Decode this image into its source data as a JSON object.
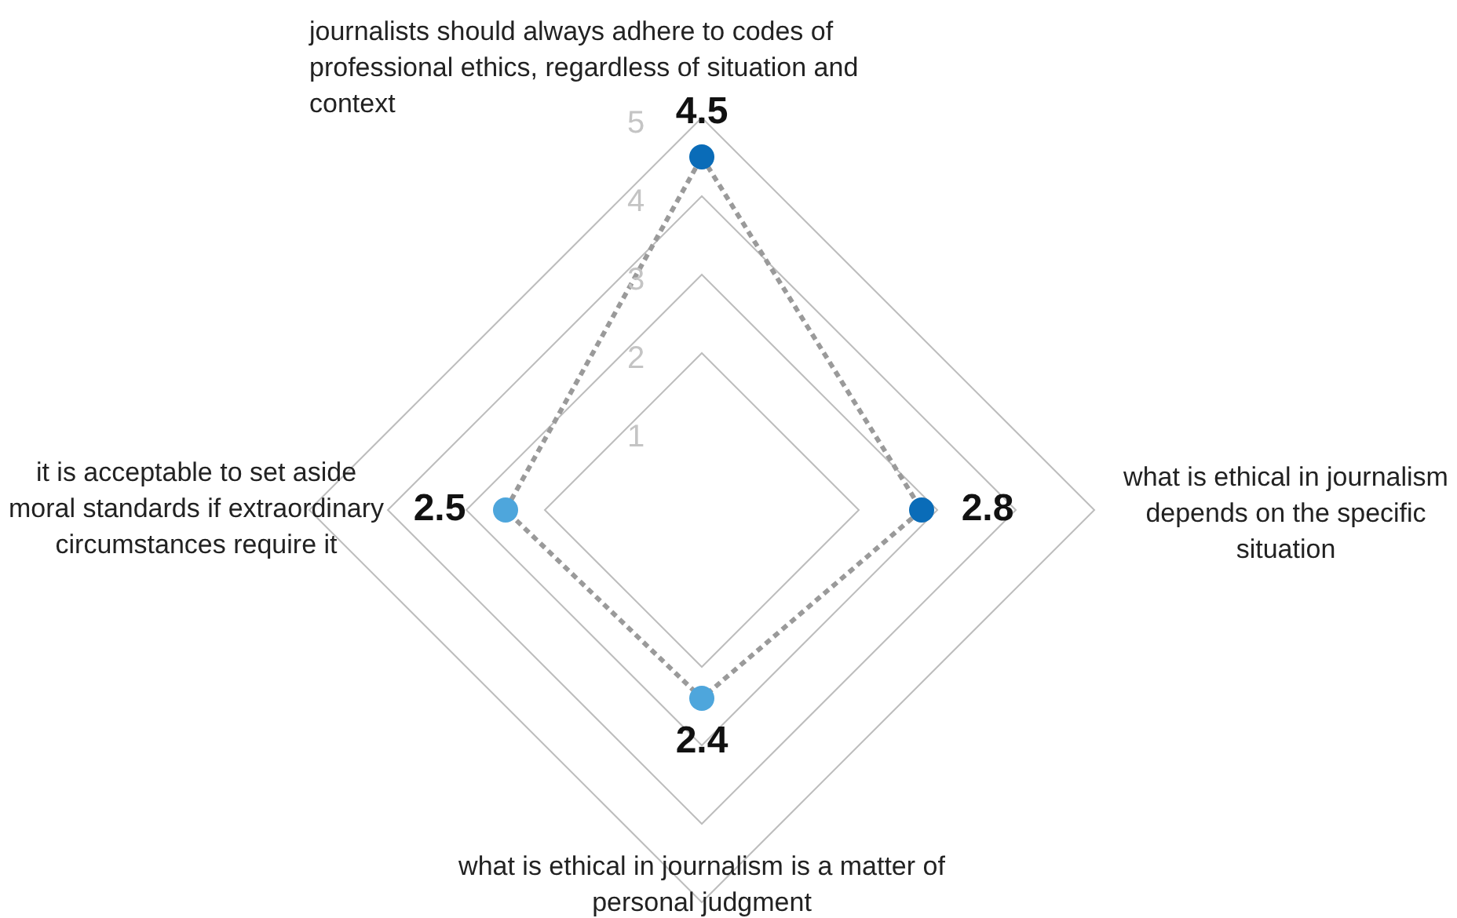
{
  "chart_data": {
    "type": "radar",
    "categories": [
      "journalists should always adhere to codes of professional ethics, regardless of situation and context",
      "what is ethical in journalism depends on the specific situation",
      "what is ethical in journalism is a matter of personal judgment",
      "it is acceptable to set aside moral standards if extraordinary circumstances require it"
    ],
    "series": [
      {
        "color": "#9a9a9a",
        "colors": [
          "#0a6cb8",
          "#0a6cb8",
          "#4ea6dc",
          "#4ea6dc"
        ],
        "values": [
          4.5,
          2.8,
          2.4,
          2.5
        ]
      }
    ],
    "ylim": [
      0,
      5
    ],
    "yticks": [
      1,
      2,
      3,
      4,
      5
    ],
    "grid": true,
    "data_labels": true,
    "marker": "circle",
    "line_style": "dashed"
  }
}
